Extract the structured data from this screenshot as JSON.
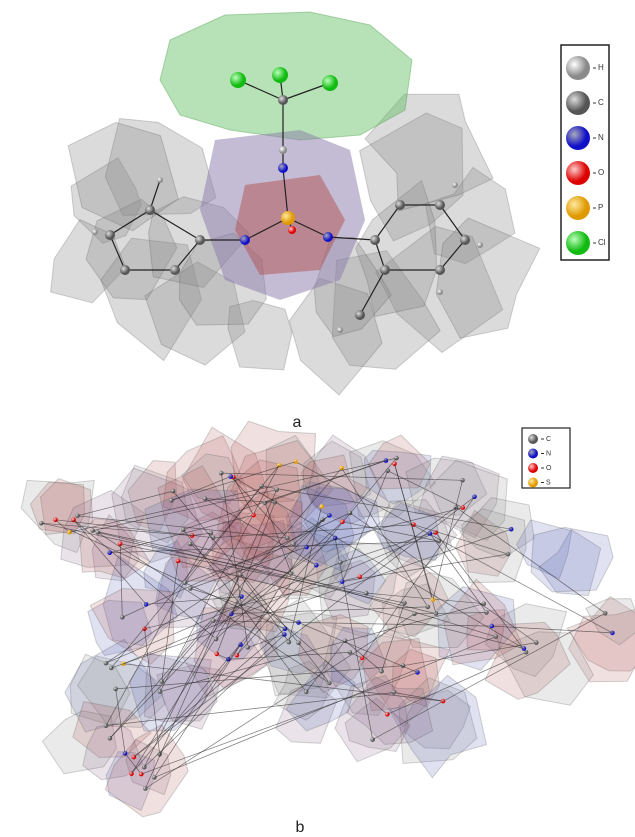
{
  "panel_a": {
    "label": "a",
    "legend": [
      "H",
      "C",
      "N",
      "O",
      "P",
      "Cl"
    ]
  },
  "panel_b": {
    "label": "b",
    "legend": [
      "C",
      "N",
      "O",
      "S"
    ]
  }
}
